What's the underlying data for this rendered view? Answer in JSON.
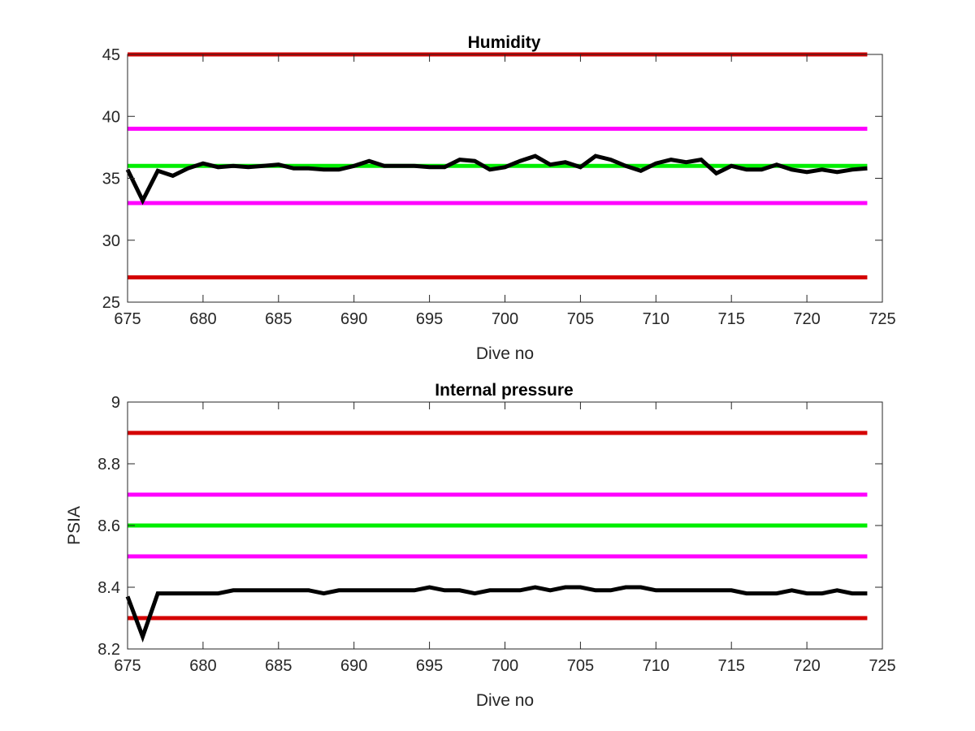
{
  "chart_data": [
    {
      "type": "line",
      "title": "Humidity",
      "xlabel": "Dive no",
      "ylabel": "",
      "xlim": [
        675,
        725
      ],
      "ylim": [
        25,
        45
      ],
      "xticks": [
        675,
        680,
        685,
        690,
        695,
        700,
        705,
        710,
        715,
        720,
        725
      ],
      "yticks": [
        25,
        30,
        35,
        40,
        45
      ],
      "reference_lines": [
        {
          "y": 45,
          "color": "#d40000"
        },
        {
          "y": 39,
          "color": "#ff00ff"
        },
        {
          "y": 36,
          "color": "#00ee00"
        },
        {
          "y": 33,
          "color": "#ff00ff"
        },
        {
          "y": 27,
          "color": "#d40000"
        }
      ],
      "series": [
        {
          "color": "#000000",
          "x": [
            675,
            676,
            677,
            678,
            679,
            680,
            681,
            682,
            683,
            684,
            685,
            686,
            687,
            688,
            689,
            690,
            691,
            692,
            693,
            694,
            695,
            696,
            697,
            698,
            699,
            700,
            701,
            702,
            703,
            704,
            705,
            706,
            707,
            708,
            709,
            710,
            711,
            712,
            713,
            714,
            715,
            716,
            717,
            718,
            719,
            720,
            721,
            722,
            723,
            724
          ],
          "y": [
            35.7,
            33.2,
            35.6,
            35.2,
            35.8,
            36.2,
            35.9,
            36.0,
            35.9,
            36.0,
            36.1,
            35.8,
            35.8,
            35.7,
            35.7,
            36.0,
            36.4,
            36.0,
            36.0,
            36.0,
            35.9,
            35.9,
            36.5,
            36.4,
            35.7,
            35.9,
            36.4,
            36.8,
            36.1,
            36.3,
            35.9,
            36.8,
            36.5,
            36.0,
            35.6,
            36.2,
            36.5,
            36.3,
            36.5,
            35.4,
            36.0,
            35.7,
            35.7,
            36.1,
            35.7,
            35.5,
            35.7,
            35.5,
            35.7,
            35.8
          ]
        }
      ]
    },
    {
      "type": "line",
      "title": "Internal pressure",
      "xlabel": "Dive no",
      "ylabel": "PSIA",
      "xlim": [
        675,
        725
      ],
      "ylim": [
        8.2,
        9
      ],
      "xticks": [
        675,
        680,
        685,
        690,
        695,
        700,
        705,
        710,
        715,
        720,
        725
      ],
      "yticks": [
        8.2,
        8.4,
        8.6,
        8.8,
        9
      ],
      "ytick_labels": [
        "8.2",
        "8.4",
        "8.6",
        "8.8",
        "9"
      ],
      "reference_lines": [
        {
          "y": 8.9,
          "color": "#d40000"
        },
        {
          "y": 8.7,
          "color": "#ff00ff"
        },
        {
          "y": 8.6,
          "color": "#00ee00"
        },
        {
          "y": 8.5,
          "color": "#ff00ff"
        },
        {
          "y": 8.3,
          "color": "#d40000"
        }
      ],
      "series": [
        {
          "color": "#000000",
          "x": [
            675,
            676,
            677,
            678,
            679,
            680,
            681,
            682,
            683,
            684,
            685,
            686,
            687,
            688,
            689,
            690,
            691,
            692,
            693,
            694,
            695,
            696,
            697,
            698,
            699,
            700,
            701,
            702,
            703,
            704,
            705,
            706,
            707,
            708,
            709,
            710,
            711,
            712,
            713,
            714,
            715,
            716,
            717,
            718,
            719,
            720,
            721,
            722,
            723,
            724
          ],
          "y": [
            8.37,
            8.24,
            8.38,
            8.38,
            8.38,
            8.38,
            8.38,
            8.39,
            8.39,
            8.39,
            8.39,
            8.39,
            8.39,
            8.38,
            8.39,
            8.39,
            8.39,
            8.39,
            8.39,
            8.39,
            8.4,
            8.39,
            8.39,
            8.38,
            8.39,
            8.39,
            8.39,
            8.4,
            8.39,
            8.4,
            8.4,
            8.39,
            8.39,
            8.4,
            8.4,
            8.39,
            8.39,
            8.39,
            8.39,
            8.39,
            8.39,
            8.38,
            8.38,
            8.38,
            8.39,
            8.38,
            8.38,
            8.39,
            8.38,
            8.38
          ]
        }
      ]
    }
  ]
}
